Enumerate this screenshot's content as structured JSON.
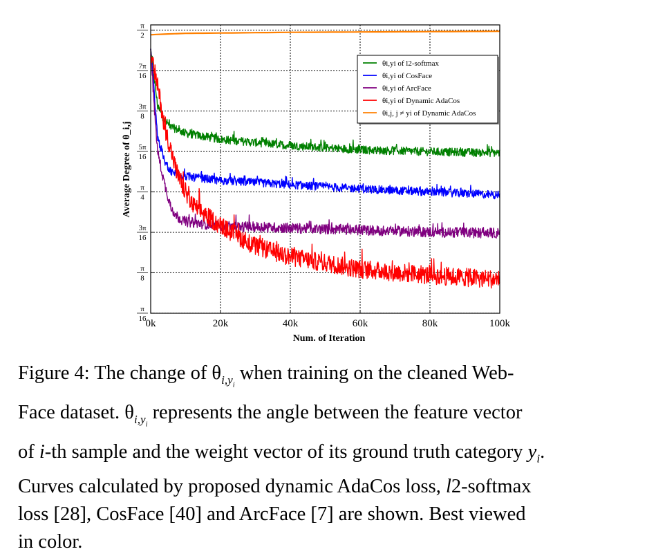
{
  "chart_data": {
    "type": "line",
    "xlabel": "Num. of Iteration",
    "ylabel": "Average Degree of θ_i,j",
    "xlim": [
      0,
      100000
    ],
    "ylim": [
      0.196,
      1.596
    ],
    "grid": true,
    "legend_position": "top-right",
    "x_ticks": [
      {
        "value": 0,
        "label": "0k"
      },
      {
        "value": 20000,
        "label": "20k"
      },
      {
        "value": 40000,
        "label": "40k"
      },
      {
        "value": 60000,
        "label": "60k"
      },
      {
        "value": 80000,
        "label": "80k"
      },
      {
        "value": 100000,
        "label": "100k"
      }
    ],
    "y_ticks": [
      {
        "value": 1.5708,
        "num": "π",
        "den": "2"
      },
      {
        "value": 1.3744,
        "num": "7π",
        "den": "16"
      },
      {
        "value": 1.1781,
        "num": "3π",
        "den": "8"
      },
      {
        "value": 0.9817,
        "num": "5π",
        "den": "16"
      },
      {
        "value": 0.7854,
        "num": "π",
        "den": "4"
      },
      {
        "value": 0.589,
        "num": "3π",
        "den": "16"
      },
      {
        "value": 0.3927,
        "num": "π",
        "den": "8"
      },
      {
        "value": 0.1963,
        "num": "π",
        "den": "16"
      }
    ],
    "series": [
      {
        "name": "θi,yi of l2-softmax",
        "color": "#008000",
        "noise": 0.02,
        "x": [
          0,
          2000,
          4000,
          6000,
          10000,
          20000,
          40000,
          60000,
          80000,
          100000
        ],
        "y": [
          1.48,
          1.2,
          1.13,
          1.1,
          1.07,
          1.04,
          1.01,
          0.99,
          0.98,
          0.975
        ]
      },
      {
        "name": "θi,yi of CosFace",
        "color": "#0000ff",
        "noise": 0.02,
        "x": [
          0,
          2000,
          4000,
          6000,
          10000,
          20000,
          40000,
          60000,
          80000,
          100000
        ],
        "y": [
          1.48,
          1.05,
          0.93,
          0.88,
          0.86,
          0.84,
          0.82,
          0.8,
          0.785,
          0.77
        ]
      },
      {
        "name": "θi,yi of ArcFace",
        "color": "#800080",
        "noise": 0.025,
        "x": [
          0,
          1000,
          2000,
          4000,
          6000,
          8000,
          10000,
          20000,
          40000,
          60000,
          80000,
          100000
        ],
        "y": [
          1.48,
          1.2,
          0.98,
          0.82,
          0.7,
          0.66,
          0.64,
          0.62,
          0.61,
          0.6,
          0.59,
          0.585
        ]
      },
      {
        "name": "θi,yi of Dynamic AdaCos",
        "color": "#ff0000",
        "noise": 0.045,
        "x": [
          0,
          2000,
          4000,
          8000,
          12000,
          20000,
          30000,
          40000,
          60000,
          80000,
          100000
        ],
        "y": [
          1.45,
          1.3,
          1.1,
          0.85,
          0.72,
          0.62,
          0.52,
          0.47,
          0.41,
          0.38,
          0.36
        ]
      },
      {
        "name": "θi,j, j ≠ yi of Dynamic AdaCos",
        "color": "#ff8000",
        "noise": 0.0,
        "x": [
          0,
          2000,
          10000,
          40000,
          100000
        ],
        "y": [
          1.548,
          1.55,
          1.555,
          1.56,
          1.565
        ]
      }
    ]
  },
  "caption": {
    "line1": "Figure 4: The change of θ",
    "line1_sub": "i,y",
    "line1_sub2": "i",
    "line1_rest": " when training on the cleaned Web-",
    "line2": "Face dataset. θ",
    "line2_sub": "i,y",
    "line2_sub2": "i",
    "line2_rest": " represents the angle between the feature vector",
    "line3": "of ",
    "line3_i": "i",
    "line3_rest": "-th sample and the weight vector of its ground truth category ",
    "line3_y": "y",
    "line3_ysub": "i",
    "line3_end": ".",
    "line4": "Curves calculated by proposed dynamic AdaCos loss, ",
    "line4_l": "l",
    "line4_rest": "2-softmax",
    "line5": "loss [28], CosFace [40] and ArcFace [7] are shown.  Best viewed",
    "line6": "in color."
  }
}
